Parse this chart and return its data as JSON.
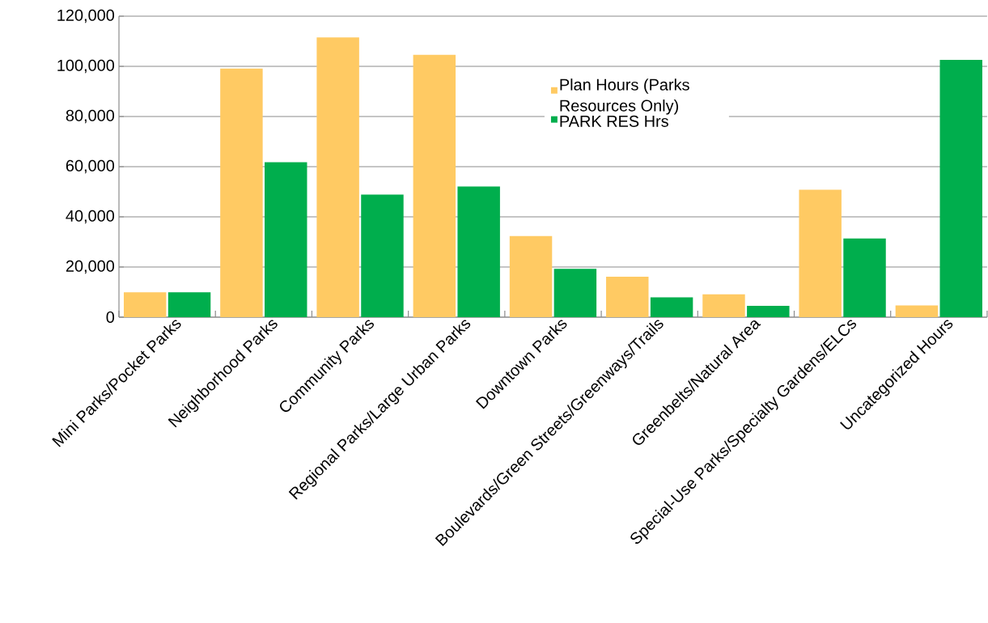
{
  "chart_data": {
    "type": "bar",
    "categories": [
      "Mini Parks/Pocket Parks",
      "Neighborhood Parks",
      "Community Parks",
      "Regional Parks/Large Urban Parks",
      "Downtown Parks",
      "Boulevards/Green Streets/Greenways/Trails",
      "Greenbelts/Natural Area",
      "Special-Use Parks/Specialty Gardens/ELCs",
      "Uncategorized Hours"
    ],
    "series": [
      {
        "name": "Plan Hours (Parks Resources Only)",
        "color": "#ffca63",
        "values": [
          9900,
          99100,
          111500,
          104600,
          32300,
          16100,
          9100,
          50800,
          4700
        ]
      },
      {
        "name": "PARK RES Hrs",
        "color": "#00ae4d",
        "values": [
          9900,
          61800,
          48900,
          52100,
          19300,
          7900,
          4500,
          31400,
          102600
        ]
      }
    ],
    "ylim": [
      0,
      120000
    ],
    "yticks": [
      {
        "value": 0,
        "label": "0"
      },
      {
        "value": 20000,
        "label": "20,000"
      },
      {
        "value": 40000,
        "label": "40,000"
      },
      {
        "value": 60000,
        "label": "60,000"
      },
      {
        "value": 80000,
        "label": "80,000"
      },
      {
        "value": 100000,
        "label": "100,000"
      },
      {
        "value": 120000,
        "label": "120,000"
      }
    ],
    "grid": "y",
    "legend": "top"
  }
}
